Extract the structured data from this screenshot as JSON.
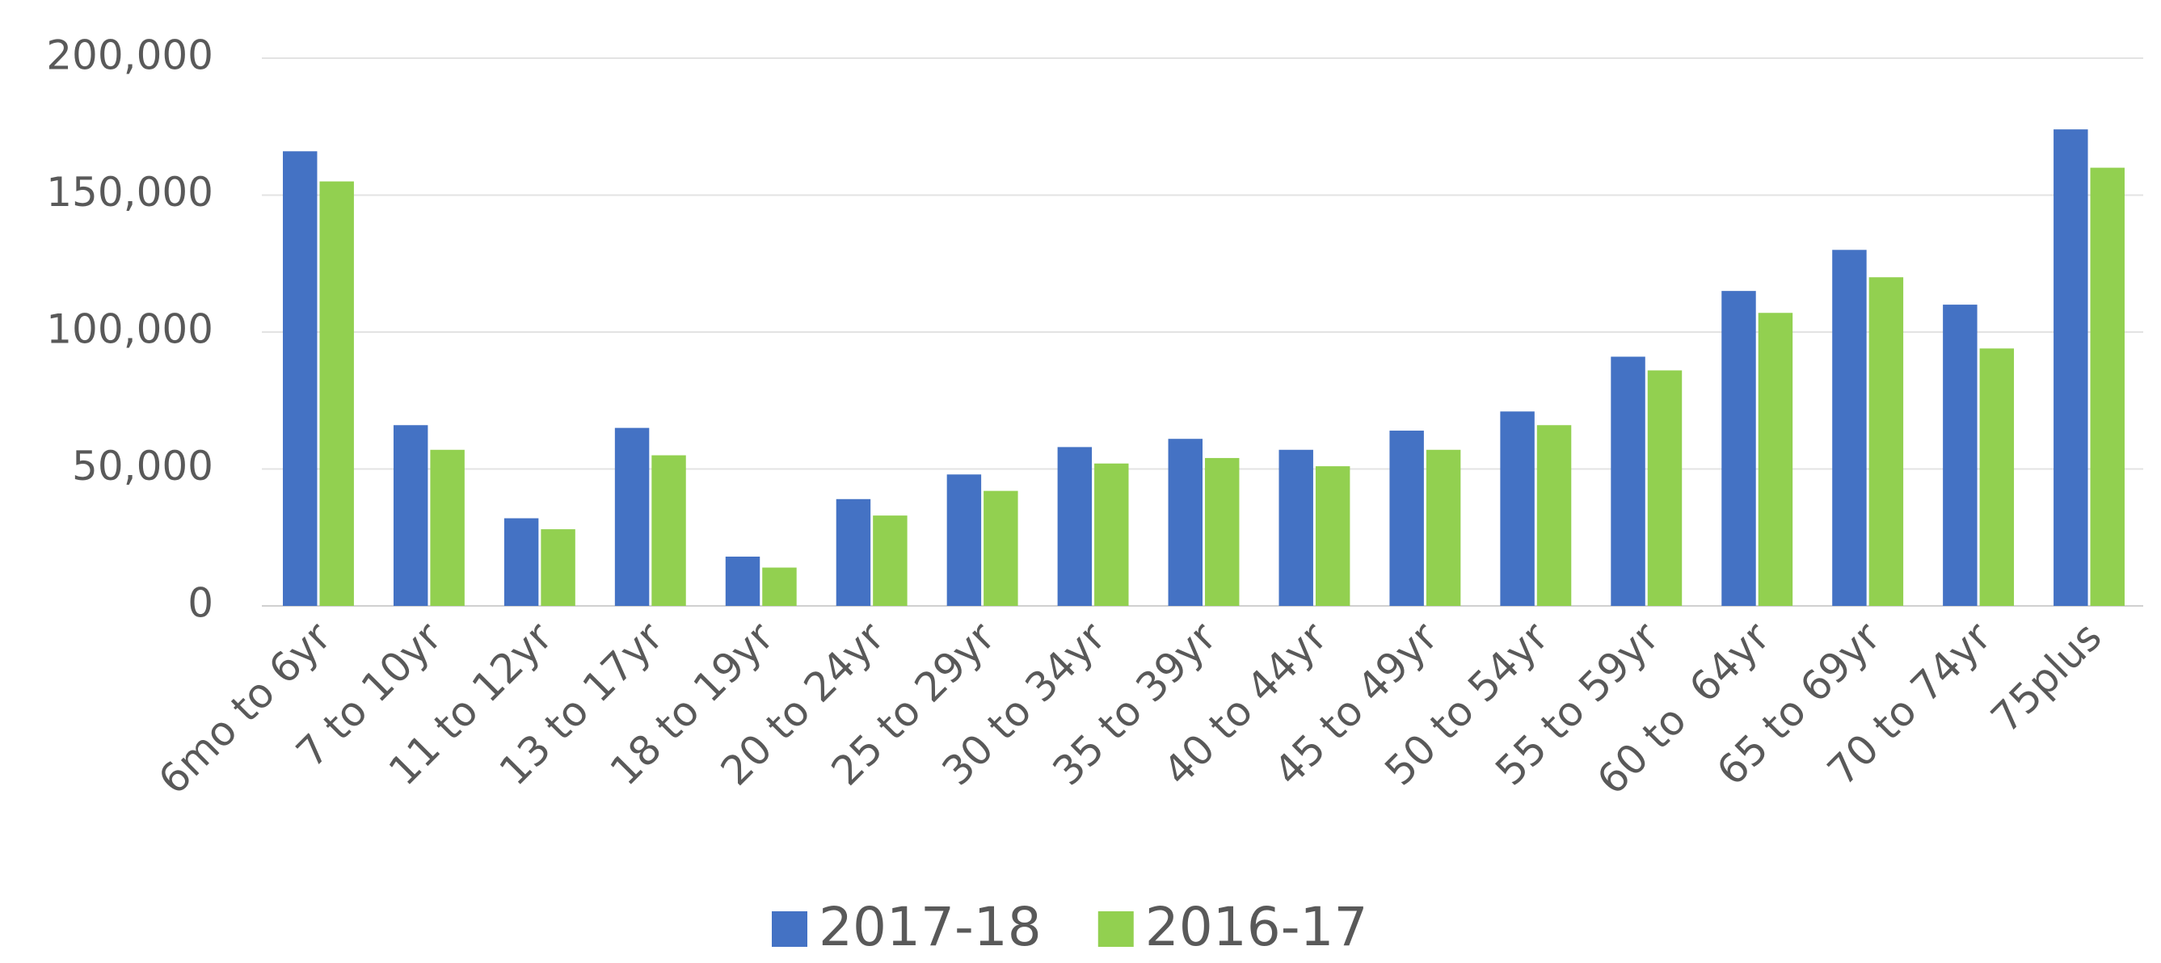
{
  "chart_data": {
    "type": "bar",
    "categories": [
      "6mo to 6yr",
      "7 to 10yr",
      "11 to 12yr",
      "13 to 17yr",
      "18 to 19yr",
      "20 to 24yr",
      "25 to 29yr",
      "30 to 34yr",
      "35 to 39yr",
      "40 to 44yr",
      "45 to 49yr",
      "50 to 54yr",
      "55 to 59yr",
      "60 to  64yr",
      "65 to 69yr",
      "70 to 74yr",
      "75plus"
    ],
    "series": [
      {
        "name": "2017-18",
        "color": "#4472c4",
        "values": [
          166000,
          66000,
          32000,
          65000,
          18000,
          39000,
          48000,
          58000,
          61000,
          57000,
          64000,
          71000,
          91000,
          115000,
          130000,
          110000,
          174000
        ]
      },
      {
        "name": "2016-17",
        "color": "#92d050",
        "values": [
          155000,
          57000,
          28000,
          55000,
          14000,
          33000,
          42000,
          52000,
          54000,
          51000,
          57000,
          66000,
          86000,
          107000,
          120000,
          94000,
          160000
        ]
      }
    ],
    "ylim": [
      0,
      200000
    ],
    "yticks": [
      0,
      {
        "value": 50000,
        "label": "50,000"
      },
      {
        "value": 100000,
        "label": "100,000"
      },
      {
        "value": 150000,
        "label": "150,000"
      },
      {
        "value": 200000,
        "label": "200,000"
      }
    ],
    "grid": true,
    "legend": "bottom"
  }
}
